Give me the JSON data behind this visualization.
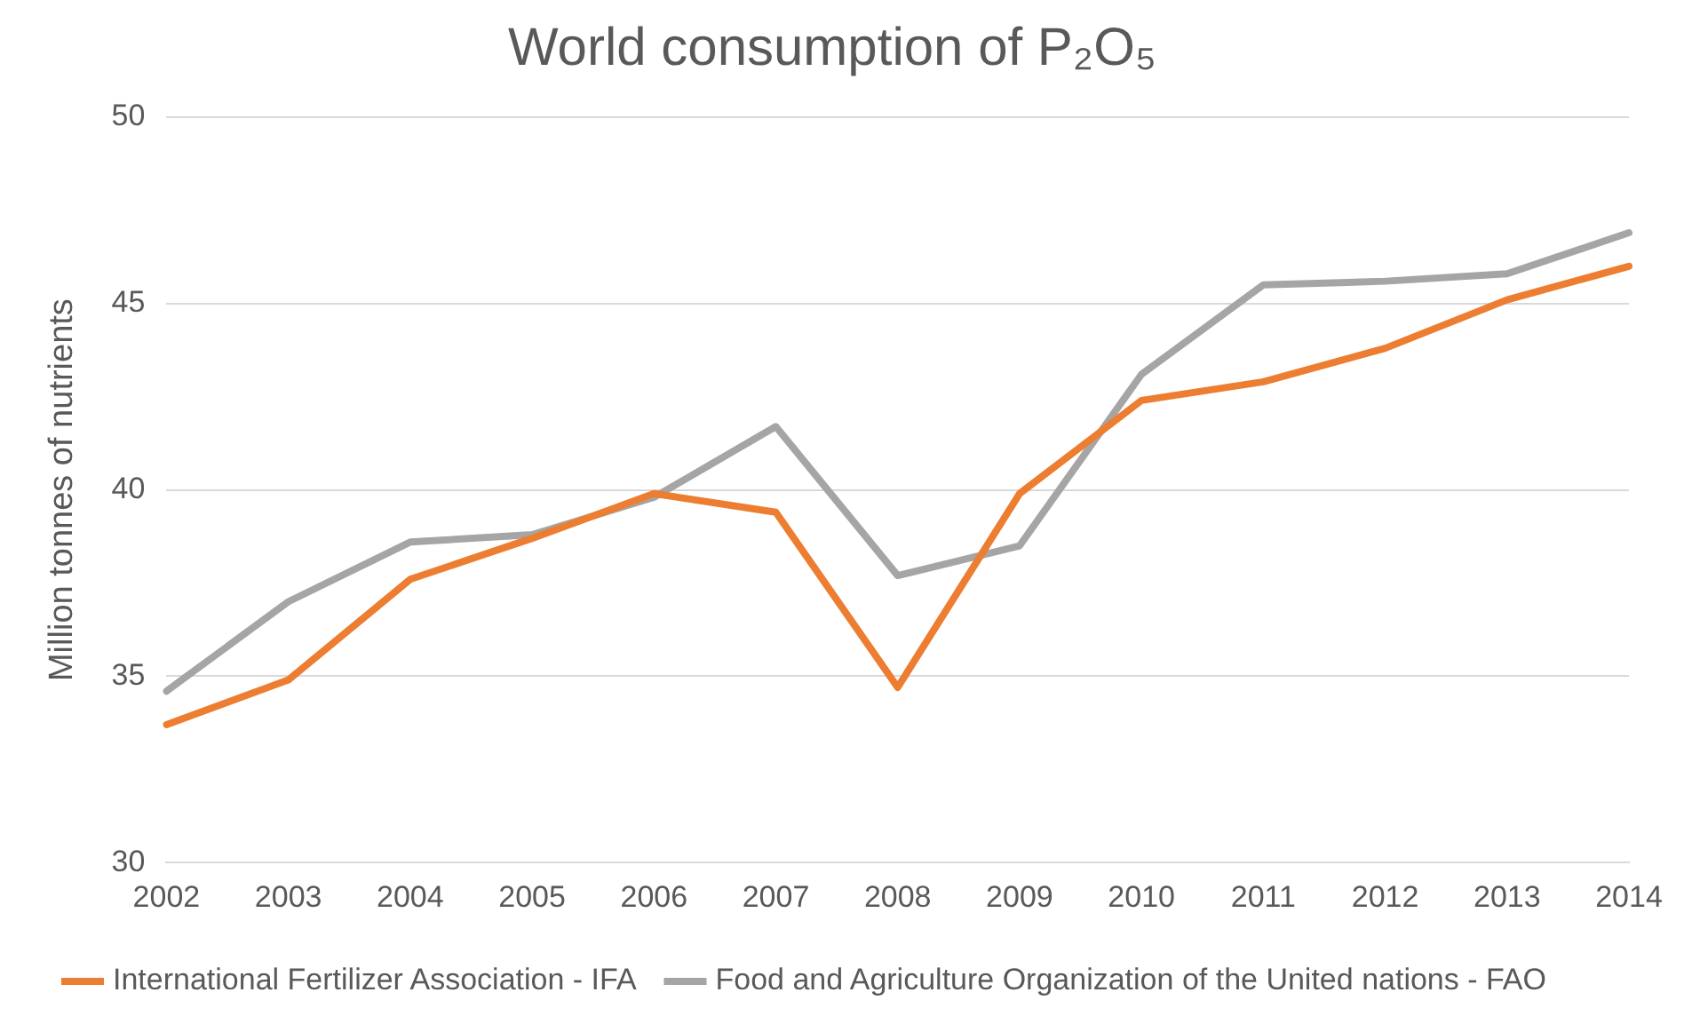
{
  "chart_data": {
    "type": "line",
    "title": "World consumption of P₂O₅",
    "ylabel": "Million tonnes of nutrients",
    "categories": [
      "2002",
      "2003",
      "2004",
      "2005",
      "2006",
      "2007",
      "2008",
      "2009",
      "2010",
      "2011",
      "2012",
      "2013",
      "2014"
    ],
    "series": [
      {
        "name": "International Fertilizer Association - IFA",
        "color": "#ed7d31",
        "values": [
          33.7,
          34.9,
          37.6,
          38.7,
          39.9,
          39.4,
          34.7,
          39.9,
          42.4,
          42.9,
          43.8,
          45.1,
          46.0
        ]
      },
      {
        "name": "Food and Agriculture Organization of the United nations - FAO",
        "color": "#a5a5a5",
        "values": [
          34.6,
          37.0,
          38.6,
          38.8,
          39.8,
          41.7,
          37.7,
          38.5,
          43.1,
          45.5,
          45.6,
          45.8,
          46.9
        ]
      }
    ],
    "ylim": [
      30,
      50
    ],
    "yticks": [
      30,
      35,
      40,
      45,
      50
    ],
    "grid": "y",
    "legend": "bottom",
    "marker": "none",
    "line_style": "solid"
  }
}
